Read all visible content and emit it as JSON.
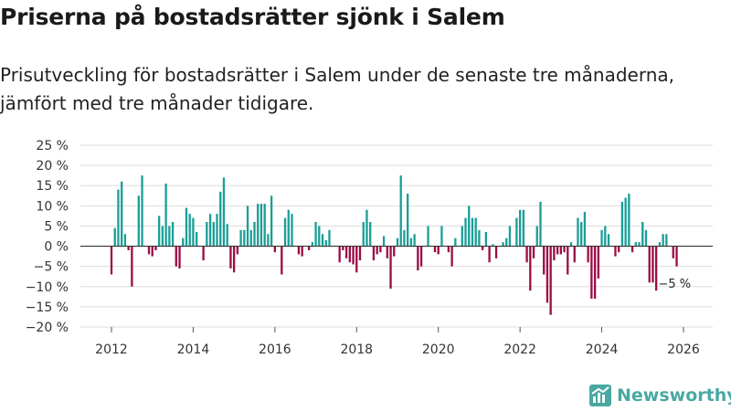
{
  "header": {
    "title": "Priserna på bostadsrätter sjönk i Salem",
    "subtitle": "Prisutveckling för bostadsrätter i Salem under de senaste tre månaderna, jämfört med tre månader tidigare."
  },
  "brand": {
    "name": "Newsworthy",
    "icon": "newsworthy-logo-icon"
  },
  "colors": {
    "positive": "#1a9e96",
    "negative": "#9c0c44",
    "grid": "#dddddd",
    "zero": "#333333"
  },
  "chart_data": {
    "type": "bar",
    "ylim": [
      -20,
      25
    ],
    "y_ticks": [
      25,
      20,
      15,
      10,
      5,
      0,
      -5,
      -10,
      -15,
      -20
    ],
    "y_tick_labels": [
      "25 %",
      "20 %",
      "15 %",
      "10 %",
      "5 %",
      "0 %",
      "−5 %",
      "−10 %",
      "−15 %",
      "−20 %"
    ],
    "x_ticks": [
      2012,
      2014,
      2016,
      2018,
      2020,
      2022,
      2024,
      2026
    ],
    "x_tick_labels": [
      "2012",
      "2014",
      "2016",
      "2018",
      "2020",
      "2022",
      "2024",
      "2026"
    ],
    "x_start": 2012.0,
    "x_step": 0.08333,
    "last_value_label": "−5 %",
    "values": [
      -7,
      4.5,
      14,
      16,
      3,
      -1,
      -10,
      0,
      12.5,
      17.5,
      0,
      -2,
      -2.5,
      -1,
      7.5,
      5,
      15.5,
      5,
      6,
      -5,
      -5.5,
      2,
      9.5,
      8,
      7,
      3.5,
      0,
      -3.5,
      6,
      8,
      6,
      8,
      13.5,
      17,
      5.5,
      -5.5,
      -6.5,
      -2,
      4,
      4,
      10,
      4,
      6,
      10.5,
      10.5,
      10.5,
      3,
      12.5,
      -1.5,
      0,
      -7,
      7,
      9,
      8,
      0,
      -2,
      -2.5,
      0,
      -1,
      1,
      6,
      5,
      3,
      1.5,
      4,
      0,
      0,
      -4,
      -1,
      -3,
      -4,
      -4.5,
      -6.5,
      -3.5,
      6,
      9,
      6,
      -3.5,
      -2,
      -1.5,
      2.5,
      -3,
      -10.5,
      -2.5,
      2,
      17.5,
      4,
      13,
      2,
      3,
      -6,
      -5,
      0,
      5,
      0,
      -1.5,
      -2,
      5,
      0,
      -1.5,
      -5,
      2,
      0,
      5,
      7,
      10,
      7,
      7,
      4,
      -1,
      3.5,
      -4,
      0.5,
      -3,
      0,
      1,
      2,
      5,
      0,
      7,
      9,
      9,
      -4,
      -11,
      -3,
      5,
      11,
      -7,
      -14,
      -17,
      -3.5,
      -2,
      -2,
      -1.5,
      -7,
      1,
      -4,
      7,
      6,
      8.5,
      -4,
      -13,
      -13,
      -8,
      4,
      5,
      3,
      0,
      -2.5,
      -1.5,
      11,
      12,
      13,
      -1.5,
      1,
      1,
      6,
      4,
      -9,
      -9,
      -11,
      1,
      3,
      3,
      0,
      -3,
      -5
    ]
  }
}
